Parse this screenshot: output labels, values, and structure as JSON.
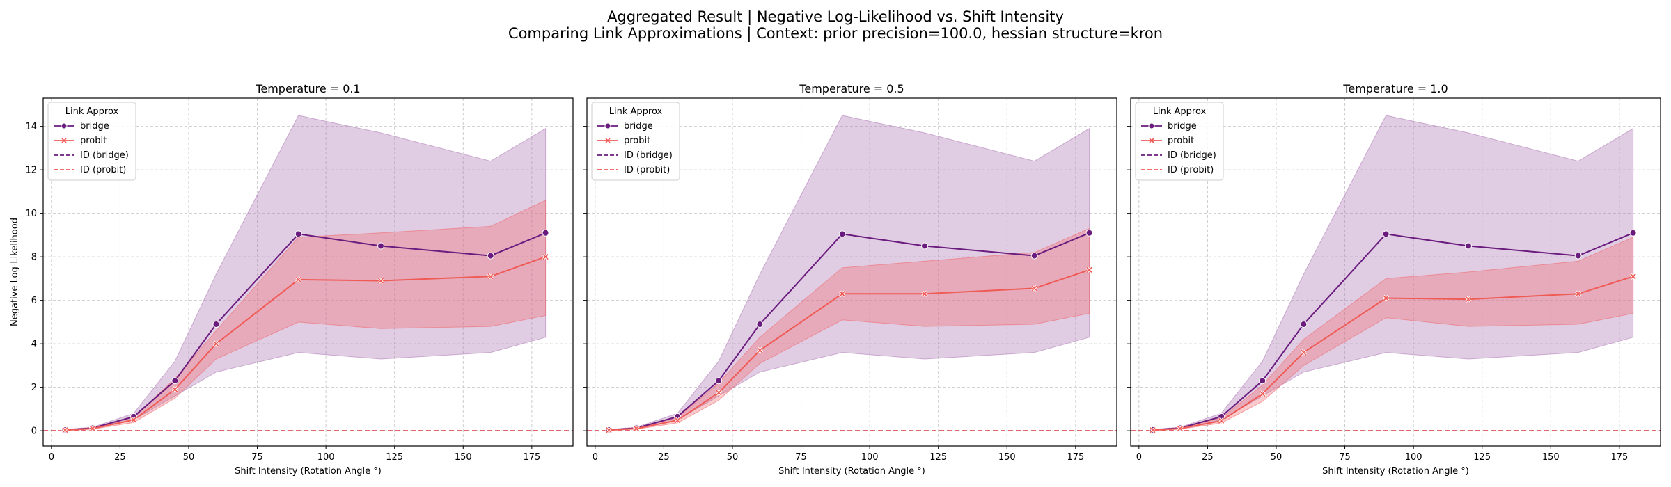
{
  "title": {
    "line1": "Aggregated Result | Negative Log-Likelihood vs. Shift Intensity",
    "line2": "Comparing Link Approximations | Context: prior precision=100.0, hessian structure=kron"
  },
  "colors": {
    "bridge": "#6a1b7e",
    "probit": "#f05a55",
    "bridge_band": "#b17fb8",
    "probit_band": "#f06a70",
    "grid": "#cccccc"
  },
  "legend_title": "Link Approx",
  "legend_entries": [
    "bridge",
    "probit",
    "ID (bridge)",
    "ID (probit)"
  ],
  "chart_data": [
    {
      "type": "line",
      "title": "Temperature = 0.1",
      "xlabel": "Shift Intensity (Rotation Angle °)",
      "ylabel": "Negative Log-Likelihood",
      "xlim": [
        -3,
        190
      ],
      "ylim": [
        -0.7,
        15.3
      ],
      "xticks": [
        0,
        25,
        50,
        75,
        100,
        125,
        150,
        175
      ],
      "yticks": [
        0,
        2,
        4,
        6,
        8,
        10,
        12,
        14
      ],
      "grid": true,
      "legend_position": "upper-left",
      "x": [
        5,
        15,
        30,
        45,
        60,
        90,
        120,
        160,
        180
      ],
      "series": [
        {
          "name": "bridge",
          "values": [
            0.04,
            0.12,
            0.65,
            2.3,
            4.9,
            9.05,
            8.5,
            8.05,
            9.1
          ],
          "band_low": [
            0.02,
            0.08,
            0.5,
            1.6,
            2.7,
            3.6,
            3.3,
            3.6,
            4.3
          ],
          "band_high": [
            0.06,
            0.16,
            0.8,
            3.2,
            7.2,
            14.5,
            13.7,
            12.4,
            13.9
          ]
        },
        {
          "name": "probit",
          "values": [
            0.03,
            0.1,
            0.5,
            1.9,
            4.0,
            6.95,
            6.9,
            7.1,
            8.0
          ],
          "band_low": [
            0.02,
            0.07,
            0.38,
            1.5,
            3.3,
            5.0,
            4.7,
            4.8,
            5.3
          ],
          "band_high": [
            0.05,
            0.14,
            0.62,
            2.4,
            4.6,
            8.9,
            9.1,
            9.4,
            10.6
          ]
        }
      ],
      "id_lines": [
        {
          "name": "ID (bridge)",
          "y": 0.0
        },
        {
          "name": "ID (probit)",
          "y": 0.0
        }
      ]
    },
    {
      "type": "line",
      "title": "Temperature = 0.5",
      "xlabel": "Shift Intensity (Rotation Angle °)",
      "ylabel": "",
      "xlim": [
        -3,
        190
      ],
      "ylim": [
        -0.7,
        15.3
      ],
      "xticks": [
        0,
        25,
        50,
        75,
        100,
        125,
        150,
        175
      ],
      "yticks": [
        0,
        2,
        4,
        6,
        8,
        10,
        12,
        14
      ],
      "grid": true,
      "legend_position": "upper-left",
      "x": [
        5,
        15,
        30,
        45,
        60,
        90,
        120,
        160,
        180
      ],
      "series": [
        {
          "name": "bridge",
          "values": [
            0.04,
            0.12,
            0.65,
            2.3,
            4.9,
            9.05,
            8.5,
            8.05,
            9.1
          ],
          "band_low": [
            0.02,
            0.08,
            0.5,
            1.6,
            2.7,
            3.6,
            3.3,
            3.6,
            4.3
          ],
          "band_high": [
            0.06,
            0.16,
            0.8,
            3.2,
            7.2,
            14.5,
            13.7,
            12.4,
            13.9
          ]
        },
        {
          "name": "probit",
          "values": [
            0.03,
            0.1,
            0.48,
            1.75,
            3.7,
            6.3,
            6.3,
            6.55,
            7.4
          ],
          "band_low": [
            0.02,
            0.07,
            0.36,
            1.4,
            3.1,
            5.1,
            4.8,
            4.9,
            5.4
          ],
          "band_high": [
            0.05,
            0.14,
            0.6,
            2.2,
            4.3,
            7.5,
            7.8,
            8.2,
            9.3
          ]
        }
      ],
      "id_lines": [
        {
          "name": "ID (bridge)",
          "y": 0.0
        },
        {
          "name": "ID (probit)",
          "y": 0.0
        }
      ]
    },
    {
      "type": "line",
      "title": "Temperature = 1.0",
      "xlabel": "Shift Intensity (Rotation Angle °)",
      "ylabel": "",
      "xlim": [
        -3,
        190
      ],
      "ylim": [
        -0.7,
        15.3
      ],
      "xticks": [
        0,
        25,
        50,
        75,
        100,
        125,
        150,
        175
      ],
      "yticks": [
        0,
        2,
        4,
        6,
        8,
        10,
        12,
        14
      ],
      "grid": true,
      "legend_position": "upper-left",
      "x": [
        5,
        15,
        30,
        45,
        60,
        90,
        120,
        160,
        180
      ],
      "series": [
        {
          "name": "bridge",
          "values": [
            0.04,
            0.12,
            0.65,
            2.3,
            4.9,
            9.05,
            8.5,
            8.05,
            9.1
          ],
          "band_low": [
            0.02,
            0.08,
            0.5,
            1.6,
            2.7,
            3.6,
            3.3,
            3.6,
            4.3
          ],
          "band_high": [
            0.06,
            0.16,
            0.8,
            3.2,
            7.2,
            14.5,
            13.7,
            12.4,
            13.9
          ]
        },
        {
          "name": "probit",
          "values": [
            0.03,
            0.1,
            0.46,
            1.7,
            3.6,
            6.1,
            6.05,
            6.3,
            7.1
          ],
          "band_low": [
            0.02,
            0.07,
            0.35,
            1.35,
            3.0,
            5.2,
            4.8,
            4.9,
            5.4
          ],
          "band_high": [
            0.05,
            0.14,
            0.58,
            2.1,
            4.2,
            7.0,
            7.3,
            7.8,
            8.9
          ]
        }
      ],
      "id_lines": [
        {
          "name": "ID (bridge)",
          "y": 0.0
        },
        {
          "name": "ID (probit)",
          "y": 0.0
        }
      ]
    }
  ]
}
